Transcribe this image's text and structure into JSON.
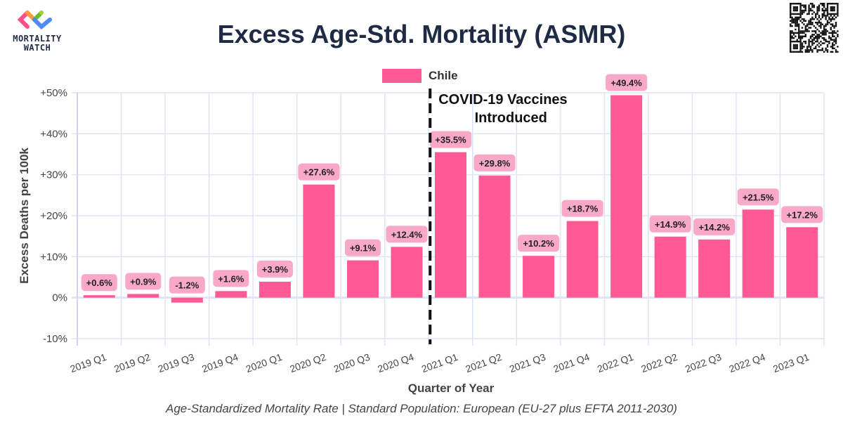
{
  "logo": {
    "line1": "MORTALITY",
    "line2": "WATCH"
  },
  "colors": {
    "bar": "#ff5a94",
    "label_bg": "#f9a8c8",
    "grid": "#dfe3f6",
    "title": "#1f2b45"
  },
  "footer": "Age-Standardized Mortality Rate | Standard Population: European (EU-27 plus EFTA 2011-2030)",
  "chart_data": {
    "type": "bar",
    "title": "Excess Age-Std. Mortality (ASMR)",
    "xlabel": "Quarter of Year",
    "ylabel": "Excess Deaths per 100k",
    "legend": {
      "entries": [
        "Chile"
      ],
      "placement": "top-center"
    },
    "ylim": [
      -10,
      50
    ],
    "yticks": [
      -10,
      0,
      10,
      20,
      30,
      40,
      50
    ],
    "ytick_labels": [
      "-10%",
      "0%",
      "+10%",
      "+20%",
      "+30%",
      "+40%",
      "+50%"
    ],
    "grid": true,
    "categories": [
      "2019 Q1",
      "2019 Q2",
      "2019 Q3",
      "2019 Q4",
      "2020 Q1",
      "2020 Q2",
      "2020 Q3",
      "2020 Q4",
      "2021 Q1",
      "2021 Q2",
      "2021 Q3",
      "2021 Q4",
      "2022 Q1",
      "2022 Q2",
      "2022 Q3",
      "2022 Q4",
      "2023 Q1"
    ],
    "series": [
      {
        "name": "Chile",
        "values": [
          0.6,
          0.9,
          -1.2,
          1.6,
          3.9,
          27.6,
          9.1,
          12.4,
          35.5,
          29.8,
          10.2,
          18.7,
          49.4,
          14.9,
          14.2,
          21.5,
          17.2
        ]
      }
    ],
    "data_labels": [
      "+0.6%",
      "+0.9%",
      "-1.2%",
      "+1.6%",
      "+3.9%",
      "+27.6%",
      "+9.1%",
      "+12.4%",
      "+35.5%",
      "+29.8%",
      "+10.2%",
      "+18.7%",
      "+49.4%",
      "+14.9%",
      "+14.2%",
      "+21.5%",
      "+17.2%"
    ],
    "annotation": {
      "line1": "COVID-19 Vaccines",
      "line2": "Introduced",
      "between": [
        "2020 Q4",
        "2021 Q1"
      ]
    }
  }
}
